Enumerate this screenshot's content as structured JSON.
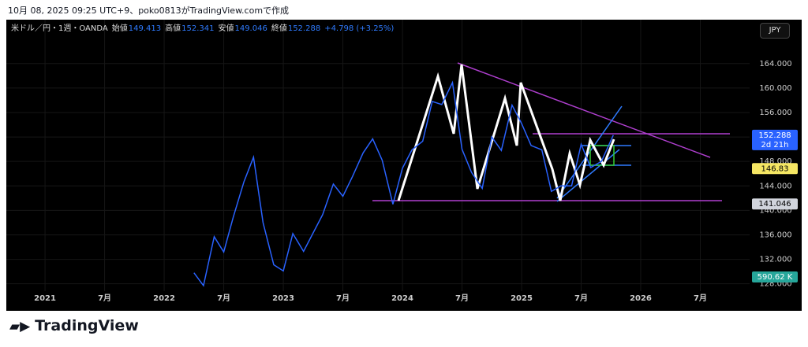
{
  "header": "10月 08, 2025 09:25 UTC+9、poko0813がTradingView.comで作成",
  "brand": "TradingView",
  "currency_button": "JPY",
  "chart_data": {
    "type": "line",
    "symbol": "米ドル／円・1週・OANDA",
    "ohlc": [
      {
        "label": "始値",
        "value": 149.413
      },
      {
        "label": "高値",
        "value": 152.341
      },
      {
        "label": "安値",
        "value": 149.046
      },
      {
        "label": "終値",
        "value": 152.288
      }
    ],
    "change": "+4.798 (+3.25%)",
    "x": [
      2022.25,
      2022.33,
      2022.42,
      2022.5,
      2022.58,
      2022.67,
      2022.75,
      2022.83,
      2022.92,
      2023.0,
      2023.08,
      2023.17,
      2023.25,
      2023.33,
      2023.42,
      2023.5,
      2023.58,
      2023.67,
      2023.75,
      2023.83,
      2023.92,
      2024.0,
      2024.08,
      2024.17,
      2024.25,
      2024.33,
      2024.42,
      2024.5,
      2024.58,
      2024.67,
      2024.75,
      2024.83,
      2024.92,
      2025.0,
      2025.08,
      2025.17,
      2025.25,
      2025.33,
      2025.42,
      2025.5,
      2025.58,
      2025.67,
      2025.77
    ],
    "values": [
      129.8,
      127.7,
      135.7,
      133.2,
      138.9,
      144.7,
      148.7,
      138.0,
      131.1,
      130.1,
      136.2,
      133.3,
      136.3,
      139.3,
      144.3,
      142.3,
      145.5,
      149.4,
      151.7,
      148.2,
      141.0,
      146.9,
      149.9,
      151.3,
      157.8,
      157.3,
      160.9,
      150.0,
      146.2,
      143.6,
      152.0,
      149.8,
      157.2,
      154.2,
      150.6,
      149.9,
      143.1,
      144.0,
      144.0,
      150.8,
      147.0,
      148.0,
      152.3
    ],
    "color": "#2962ff",
    "xlim": [
      2020.675,
      2026.914
    ],
    "ylim": [
      126.8,
      168.6
    ],
    "xticks": [
      {
        "value": 2021,
        "label": "2021"
      },
      {
        "value": 2021.5,
        "label": "7月"
      },
      {
        "value": 2022,
        "label": "2022"
      },
      {
        "value": 2022.5,
        "label": "7月"
      },
      {
        "value": 2023,
        "label": "2023"
      },
      {
        "value": 2023.5,
        "label": "7月"
      },
      {
        "value": 2024,
        "label": "2024"
      },
      {
        "value": 2024.5,
        "label": "7月"
      },
      {
        "value": 2025,
        "label": "2025"
      },
      {
        "value": 2025.5,
        "label": "7月"
      },
      {
        "value": 2026,
        "label": "2026"
      },
      {
        "value": 2026.5,
        "label": "7月"
      }
    ],
    "yticks": [
      {
        "value": 128,
        "label": "128.000"
      },
      {
        "value": 132,
        "label": "132.000"
      },
      {
        "value": 136,
        "label": "136.000"
      },
      {
        "value": 140,
        "label": "140.000"
      },
      {
        "value": 144,
        "label": "144.000"
      },
      {
        "value": 148,
        "label": "148.000"
      },
      {
        "value": 152,
        "label": "152.000"
      },
      {
        "value": 156,
        "label": "156.000"
      },
      {
        "value": 160,
        "label": "160.000"
      },
      {
        "value": 164,
        "label": "164.000"
      }
    ],
    "grid": true,
    "price_labels": [
      {
        "value": 152.288,
        "sub": "2d 21h",
        "color": "#2962ff"
      },
      {
        "value": 146.83,
        "color": "#f5e663"
      },
      {
        "value": 141.046,
        "color": "#d1d4dc"
      }
    ],
    "volume_label": "590.62 K"
  }
}
